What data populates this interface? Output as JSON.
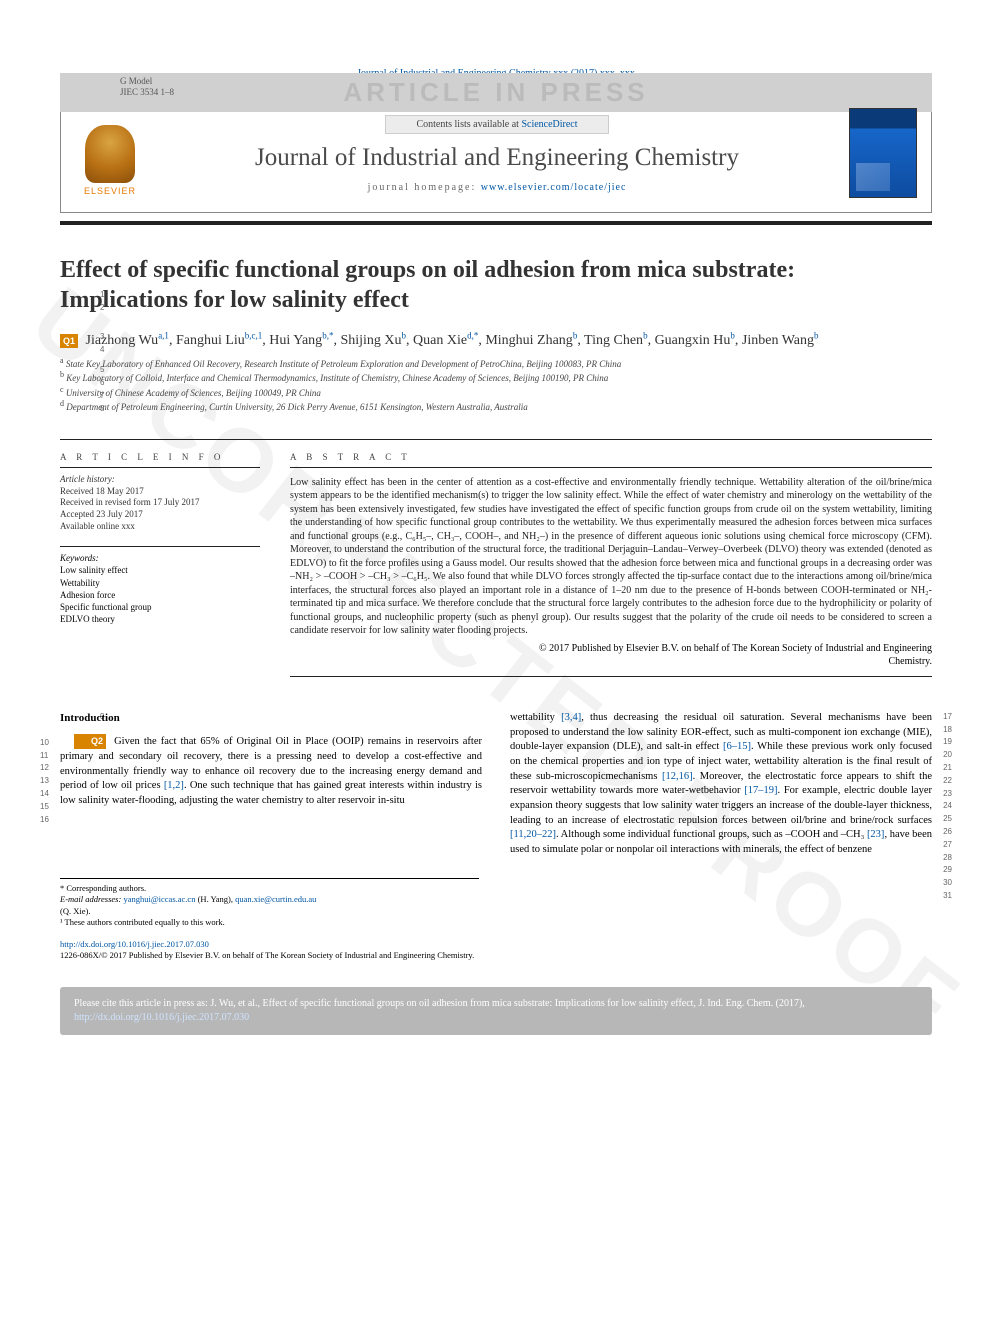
{
  "gmodel": {
    "label": "G Model",
    "code": "JIEC 3534 1–8"
  },
  "watermark_band": "ARTICLE IN PRESS",
  "proof_watermark": "UNCORRECTED PROOF",
  "journal_header_citation": "Journal of Industrial and Engineering Chemistry xxx (2017) xxx–xxx",
  "journal_box": {
    "contents_prefix": "Contents lists available at ",
    "contents_link": "ScienceDirect",
    "journal_name": "Journal of Industrial and Engineering Chemistry",
    "homepage_prefix": "journal homepage: ",
    "homepage_link": "www.elsevier.com/locate/jiec",
    "publisher_word": "ELSEVIER"
  },
  "line_numbers_title": [
    "1",
    "2"
  ],
  "line_numbers_authors": [
    "3",
    "4"
  ],
  "line_numbers_affil": [
    "5",
    "6",
    "7",
    "8"
  ],
  "q_tags": {
    "authors": "Q1",
    "intro": "Q2"
  },
  "title_line1": "Effect of specific functional groups on oil adhesion from mica substrate:",
  "title_line2": "Implications for low salinity effect",
  "authors_html": "Jiazhong Wu<sup>a,1</sup>, Fanghui Liu<sup>b,c,1</sup>, Hui Yang<sup>b,*</sup>, Shijing Xu<sup>b</sup>, Quan Xie<sup>d,*</sup>, Minghui Zhang<sup>b</sup>, Ting Chen<sup>b</sup>, Guangxin Hu<sup>b</sup>, Jinben Wang<sup>b</sup>",
  "affiliations": [
    {
      "sup": "a",
      "text": "State Key Laboratory of Enhanced Oil Recovery, Research Institute of Petroleum Exploration and Development of PetroChina, Beijing 100083, PR China"
    },
    {
      "sup": "b",
      "text": "Key Laboratory of Colloid, Interface and Chemical Thermodynamics, Institute of Chemistry, Chinese Academy of Sciences, Beijing 100190, PR China"
    },
    {
      "sup": "c",
      "text": "University of Chinese Academy of Sciences, Beijing 100049, PR China"
    },
    {
      "sup": "d",
      "text": "Department of Petroleum Engineering, Curtin University, 26 Dick Perry Avenue, 6151 Kensington, Western Australia, Australia"
    }
  ],
  "article_info": {
    "heading": "A R T I C L E  I N F O",
    "history_label": "Article history:",
    "history": [
      "Received 18 May 2017",
      "Received in revised form 17 July 2017",
      "Accepted 23 July 2017",
      "Available online xxx"
    ],
    "keywords_label": "Keywords:",
    "keywords": [
      "Low salinity effect",
      "Wettability",
      "Adhesion force",
      "Specific functional group",
      "EDLVO theory"
    ]
  },
  "abstract": {
    "heading": "A B S T R A C T",
    "text": "Low salinity effect has been in the center of attention as a cost-effective and environmentally friendly technique. Wettability alteration of the oil/brine/mica system appears to be the identified mechanism(s) to trigger the low salinity effect. While the effect of water chemistry and minerology on the wettability of the system has been extensively investigated, few studies have investigated the effect of specific function groups from crude oil on the system wettability, limiting the understanding of how specific functional group contributes to the wettability. We thus experimentally measured the adhesion forces between mica surfaces and functional groups (e.g., C₆H₅–, CH₃–, COOH–, and NH₂–) in the presence of different aqueous ionic solutions using chemical force microscopy (CFM). Moreover, to understand the contribution of the structural force, the traditional Derjaguin–Landau–Verwey–Overbeek (DLVO) theory was extended (denoted as EDLVO) to fit the force profiles using a Gauss model. Our results showed that the adhesion force between mica and functional groups in a decreasing order was –NH₂ > –COOH > –CH₃ > –C₆H₅. We also found that while DLVO forces strongly affected the tip-surface contact due to the interactions among oil/brine/mica interfaces, the structural forces also played an important role in a distance of 1–20 nm due to the presence of H-bonds between COOH-terminated or NH₂-terminated tip and mica surface. We therefore conclude that the structural force largely contributes to the adhesion force due to the hydrophilicity or polarity of functional groups, and nucleophilic property (such as phenyl group). Our results suggest that the polarity of the crude oil needs to be considered to screen a candidate reservoir for low salinity water flooding projects.",
    "copyright1": "© 2017 Published by Elsevier B.V. on behalf of The Korean Society of Industrial and Engineering",
    "copyright2": "Chemistry."
  },
  "body": {
    "section_heading": "Introduction",
    "section_line_num": "9",
    "left_line_nums": [
      "10",
      "11",
      "12",
      "13",
      "14",
      "15",
      "16"
    ],
    "right_line_nums": [
      "17",
      "18",
      "19",
      "20",
      "21",
      "22",
      "23",
      "24",
      "25",
      "26",
      "27",
      "28",
      "29",
      "30",
      "31"
    ],
    "left_text": "Given the fact that 65% of Original Oil in Place (OOIP) remains in reservoirs after primary and secondary oil recovery, there is a pressing need to develop a cost-effective and environmentally friendly way to enhance oil recovery due to the increasing energy demand and period of low oil prices [1,2]. One such technique that has gained great interests within industry is low salinity water-flooding, adjusting the water chemistry to alter reservoir in-situ",
    "left_refs": "[1,2]",
    "right_text": "wettability [3,4], thus decreasing the residual oil saturation. Several mechanisms have been proposed to understand the low salinity EOR-effect, such as multi-component ion exchange (MIE), double-layer expansion (DLE), and salt-in effect [6–15]. While these previous work only focused on the chemical properties and ion type of inject water, wettability alteration is the final result of these sub-microscopicmechanisms [12,16]. Moreover, the electrostatic force appears to shift the reservoir wettability towards more water-wetbehavior [17–19]. For example, electric double layer expansion theory suggests that low salinity water triggers an increase of the double-layer thickness, leading to an increase of electrostatic repulsion forces between oil/brine and brine/rock surfaces [11,20–22]. Although some individual functional groups, such as –COOH and –CH₃ [23], have been used to simulate polar or nonpolar oil interactions with minerals, the effect of benzene"
  },
  "footnotes": {
    "corr_label": "* Corresponding authors.",
    "email_label": "E-mail addresses:",
    "email1": "yanghui@iccas.ac.cn",
    "email1_name": "(H. Yang),",
    "email2": "quan.xie@curtin.edu.au",
    "email2_name": "(Q. Xie).",
    "contrib": "¹ These authors contributed equally to this work."
  },
  "doi": {
    "link": "http://dx.doi.org/10.1016/j.jiec.2017.07.030",
    "issn_line": "1226-086X/© 2017 Published by Elsevier B.V. on behalf of The Korean Society of Industrial and Engineering Chemistry."
  },
  "cite_box": {
    "text_prefix": "Please cite this article in press as: J. Wu, et al., Effect of specific functional groups on oil adhesion from mica substrate: Implications for low salinity effect, J. Ind. Eng. Chem. (2017), ",
    "link": "http://dx.doi.org/10.1016/j.jiec.2017.07.030"
  },
  "colors": {
    "link": "#0056a3",
    "q_tag_bg": "#d98400",
    "watermark_gray": "#bbbbbb",
    "cite_bg": "#b7b7b7"
  }
}
